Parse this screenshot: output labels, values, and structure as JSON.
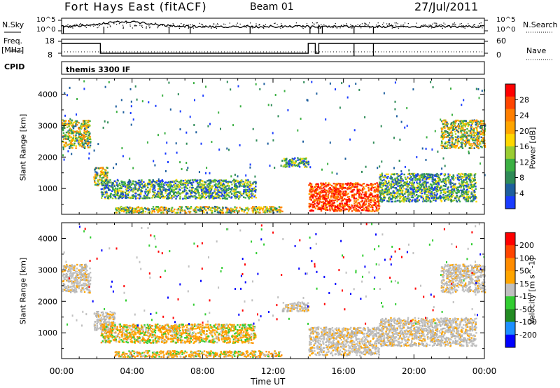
{
  "header": {
    "station": "Fort Hays East (fitACF)",
    "beam": "Beam 01",
    "date": "27/Jul/2011"
  },
  "top_panels": {
    "nsky_label": "N.Sky",
    "nsky_ticks": [
      "10^5",
      "10^0"
    ],
    "nsearch_label": "N.Search",
    "nsearch_ticks": [
      "10^5",
      "10^0"
    ],
    "freq_label": "Freq.",
    "freq_unit": "[MHz]",
    "freq_ticks": [
      "18",
      "8"
    ],
    "nave_label": "Nave",
    "nave_ticks": [
      "60",
      "0"
    ],
    "cpid_label": "CPID",
    "cpid_value": "themis 3300 IF"
  },
  "chart_data": [
    {
      "type": "heatmap",
      "name": "power-panel",
      "ylabel": "Slant Range [km]",
      "ylim": [
        180,
        4500
      ],
      "yticks": [
        "1000",
        "2000",
        "3000",
        "4000"
      ],
      "xlim": [
        0,
        24
      ],
      "colorbar_label": "Power [dB]",
      "colorbar_ticks": [
        "4",
        "8",
        "12",
        "16",
        "20",
        "24",
        "28"
      ],
      "colorbar_colors": [
        "#1a3cff",
        "#1e5f9e",
        "#2e8b57",
        "#3cb043",
        "#9acd32",
        "#ffd700",
        "#ffa500",
        "#ff7f00",
        "#ff4500",
        "#ff0000"
      ],
      "echo_regions": [
        {
          "t": [
            0.0,
            1.6
          ],
          "range": [
            2300,
            3200
          ],
          "level": "high"
        },
        {
          "t": [
            1.8,
            2.6
          ],
          "range": [
            1100,
            1700
          ],
          "level": "high"
        },
        {
          "t": [
            2.2,
            11.0
          ],
          "range": [
            700,
            1300
          ],
          "level": "medium"
        },
        {
          "t": [
            3.0,
            12.5
          ],
          "range": [
            250,
            450
          ],
          "level": "high"
        },
        {
          "t": [
            12.5,
            14.0
          ],
          "range": [
            1700,
            2000
          ],
          "level": "medium"
        },
        {
          "t": [
            14.0,
            18.0
          ],
          "range": [
            300,
            1200
          ],
          "level": "very-high"
        },
        {
          "t": [
            18.0,
            23.5
          ],
          "range": [
            600,
            1500
          ],
          "level": "medium"
        },
        {
          "t": [
            21.5,
            24.0
          ],
          "range": [
            2300,
            3200
          ],
          "level": "high"
        }
      ]
    },
    {
      "type": "heatmap",
      "name": "velocity-panel",
      "ylabel": "Slant Range [km]",
      "ylim": [
        180,
        4500
      ],
      "yticks": [
        "1000",
        "2000",
        "3000",
        "4000"
      ],
      "xlabel": "Time UT",
      "xlim": [
        0,
        24
      ],
      "xticks": [
        "00:00",
        "04:00",
        "08:00",
        "12:00",
        "16:00",
        "20:00",
        "00:00"
      ],
      "colorbar_label": "Velocity [m s^-1]",
      "colorbar_ticks": [
        "200",
        "100",
        "50",
        "15",
        "-15",
        "-50",
        "-100",
        "-200"
      ],
      "colorbar_colors": [
        "#0000ff",
        "#1e90ff",
        "#228b22",
        "#32cd32",
        "#c0c0c0",
        "#ffa500",
        "#ff8c00",
        "#ff4500",
        "#ff0000"
      ],
      "echo_regions": [
        {
          "t": [
            0.0,
            1.6
          ],
          "range": [
            2300,
            3200
          ],
          "level": "gray"
        },
        {
          "t": [
            1.8,
            3.0
          ],
          "range": [
            1100,
            1700
          ],
          "level": "gray"
        },
        {
          "t": [
            2.2,
            11.0
          ],
          "range": [
            700,
            1300
          ],
          "level": "orange"
        },
        {
          "t": [
            3.0,
            12.5
          ],
          "range": [
            250,
            450
          ],
          "level": "orange"
        },
        {
          "t": [
            12.5,
            14.0
          ],
          "range": [
            1700,
            2000
          ],
          "level": "gray"
        },
        {
          "t": [
            14.0,
            18.0
          ],
          "range": [
            300,
            1200
          ],
          "level": "gray"
        },
        {
          "t": [
            18.0,
            23.5
          ],
          "range": [
            600,
            1500
          ],
          "level": "gray"
        },
        {
          "t": [
            21.5,
            24.0
          ],
          "range": [
            2300,
            3200
          ],
          "level": "gray"
        }
      ]
    }
  ]
}
